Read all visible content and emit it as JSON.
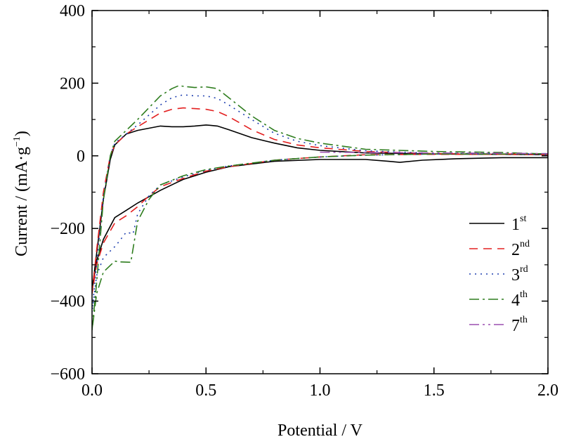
{
  "chart_data": {
    "type": "line",
    "title": "",
    "xlabel": "Potential / V",
    "ylabel": "Current / (mA·g",
    "ylabel_sup": "−1",
    "ylabel_close": ")",
    "xlim": [
      0.0,
      2.0
    ],
    "ylim": [
      -600,
      400
    ],
    "xticks": [
      0.0,
      0.5,
      1.0,
      1.5,
      2.0
    ],
    "xtick_labels": [
      "0.0",
      "0.5",
      "1.0",
      "1.5",
      "2.0"
    ],
    "yticks": [
      -600,
      -400,
      -200,
      0,
      200,
      400
    ],
    "ytick_labels": [
      "−600",
      "−400",
      "−200",
      "0",
      "200",
      "400"
    ],
    "grid": false,
    "legend_position": "right",
    "series": [
      {
        "name": "1",
        "name_sup": "st",
        "color": "#000000",
        "dash": "solid",
        "x": [
          0.0,
          0.02,
          0.05,
          0.08,
          0.1,
          0.15,
          0.2,
          0.3,
          0.35,
          0.4,
          0.45,
          0.5,
          0.52,
          0.55,
          0.6,
          0.7,
          0.8,
          0.9,
          1.0,
          1.2,
          1.5,
          1.8,
          2.0,
          2.0,
          1.8,
          1.6,
          1.45,
          1.35,
          1.3,
          1.2,
          1.0,
          0.8,
          0.6,
          0.5,
          0.4,
          0.3,
          0.2,
          0.15,
          0.1,
          0.05,
          0.02,
          0.0
        ],
        "y": [
          -370,
          -270,
          -120,
          -10,
          30,
          60,
          70,
          82,
          80,
          80,
          82,
          85,
          84,
          82,
          72,
          50,
          35,
          22,
          15,
          8,
          5,
          4,
          3,
          -5,
          -5,
          -8,
          -12,
          -18,
          -15,
          -10,
          -10,
          -15,
          -30,
          -45,
          -65,
          -95,
          -130,
          -150,
          -170,
          -230,
          -290,
          -370
        ]
      },
      {
        "name": "2",
        "name_sup": "nd",
        "color": "#e32020",
        "dash": "12,8",
        "x": [
          0.0,
          0.02,
          0.05,
          0.08,
          0.1,
          0.15,
          0.2,
          0.3,
          0.35,
          0.4,
          0.45,
          0.5,
          0.55,
          0.6,
          0.7,
          0.8,
          0.9,
          1.0,
          1.2,
          1.5,
          1.8,
          2.0,
          2.0,
          1.8,
          1.5,
          1.2,
          1.0,
          0.8,
          0.6,
          0.5,
          0.4,
          0.3,
          0.25,
          0.2,
          0.15,
          0.1,
          0.05,
          0.02,
          0.0
        ],
        "y": [
          -380,
          -260,
          -100,
          0,
          30,
          60,
          80,
          118,
          128,
          132,
          130,
          128,
          122,
          108,
          72,
          45,
          30,
          22,
          12,
          6,
          5,
          5,
          3,
          4,
          4,
          3,
          -3,
          -12,
          -30,
          -42,
          -62,
          -85,
          -110,
          -140,
          -165,
          -185,
          -240,
          -300,
          -380
        ]
      },
      {
        "name": "3",
        "name_sup": "rd",
        "color": "#1f3faf",
        "dash": "2,6",
        "x": [
          0.0,
          0.02,
          0.05,
          0.08,
          0.1,
          0.15,
          0.2,
          0.3,
          0.35,
          0.4,
          0.45,
          0.5,
          0.55,
          0.6,
          0.7,
          0.8,
          0.9,
          1.0,
          1.2,
          1.5,
          1.8,
          2.0,
          2.0,
          1.8,
          1.5,
          1.2,
          1.0,
          0.8,
          0.6,
          0.5,
          0.4,
          0.3,
          0.25,
          0.2,
          0.18,
          0.15,
          0.12,
          0.1,
          0.05,
          0.02,
          0.0
        ],
        "y": [
          -430,
          -300,
          -110,
          0,
          35,
          60,
          85,
          140,
          160,
          168,
          165,
          165,
          158,
          140,
          100,
          62,
          40,
          28,
          14,
          7,
          6,
          5,
          3,
          5,
          5,
          2,
          -3,
          -12,
          -28,
          -40,
          -58,
          -80,
          -110,
          -160,
          -215,
          -210,
          -235,
          -250,
          -280,
          -330,
          -430
        ]
      },
      {
        "name": "4",
        "name_sup": "th",
        "color": "#2e7d1e",
        "dash": "14,5,3,5",
        "x": [
          0.0,
          0.02,
          0.05,
          0.08,
          0.1,
          0.15,
          0.2,
          0.3,
          0.35,
          0.38,
          0.42,
          0.45,
          0.5,
          0.55,
          0.6,
          0.7,
          0.8,
          0.9,
          1.0,
          1.2,
          1.5,
          1.8,
          2.0,
          2.0,
          1.8,
          1.5,
          1.2,
          1.0,
          0.8,
          0.6,
          0.5,
          0.4,
          0.3,
          0.25,
          0.2,
          0.17,
          0.12,
          0.1,
          0.05,
          0.02,
          0.0
        ],
        "y": [
          -480,
          -350,
          -120,
          0,
          40,
          70,
          100,
          165,
          185,
          193,
          190,
          188,
          190,
          185,
          160,
          110,
          70,
          48,
          35,
          18,
          12,
          9,
          5,
          6,
          5,
          5,
          2,
          -3,
          -12,
          -28,
          -38,
          -55,
          -80,
          -120,
          -180,
          -293,
          -292,
          -290,
          -320,
          -380,
          -480
        ]
      },
      {
        "name": "7",
        "name_sup": "th",
        "color": "#9b4fb0",
        "dash": "14,5,3,5,3,5",
        "x": [
          1.0,
          1.2,
          1.5,
          1.8,
          2.0
        ],
        "y": [
          10,
          9,
          8,
          7,
          6
        ]
      }
    ]
  }
}
